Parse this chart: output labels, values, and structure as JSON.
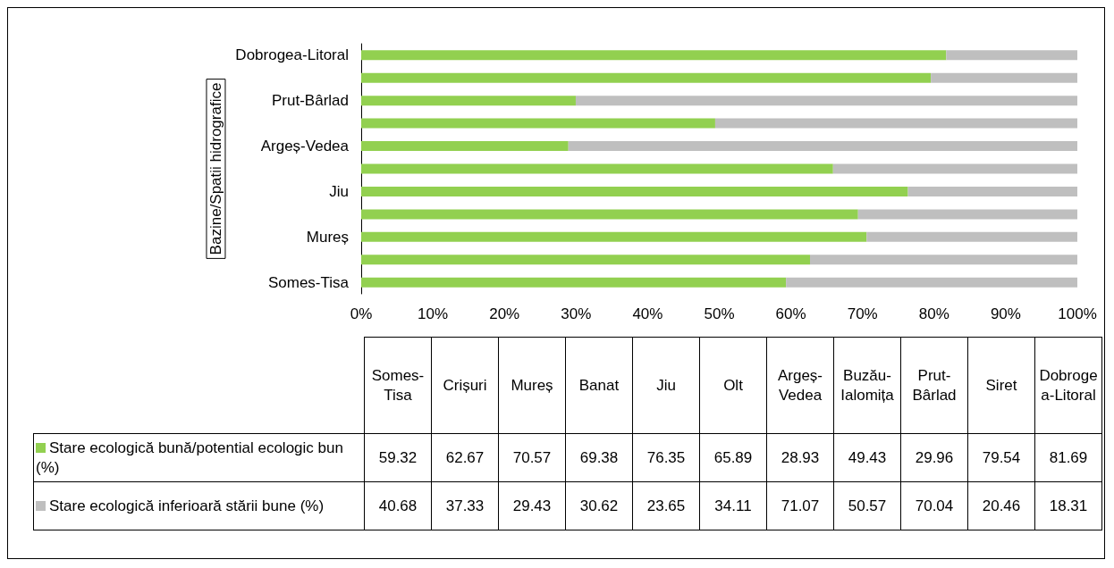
{
  "chart_data": [
    {
      "type": "bar",
      "orientation": "horizontal",
      "stacked": true,
      "ylabel": "Bazine/Spatii hidrografice",
      "categories": [
        "Dobrogea-Litoral",
        null,
        "Prut-Bârlad",
        null,
        "Argeș-Vedea",
        null,
        "Jiu",
        null,
        "Mureș",
        null,
        "Somes-Tisa"
      ],
      "series": [
        {
          "color": "#92d050",
          "values": [
            81.69,
            79.54,
            29.96,
            49.43,
            28.93,
            65.89,
            76.35,
            69.38,
            70.57,
            62.67,
            59.32
          ]
        },
        {
          "color": "#bfbfbf",
          "values": [
            18.31,
            20.46,
            70.04,
            50.57,
            71.07,
            34.11,
            23.65,
            30.62,
            29.43,
            37.33,
            40.68
          ]
        }
      ],
      "xlim": [
        0,
        100
      ],
      "xticks": [
        {
          "value": 0,
          "label": "0%"
        },
        {
          "value": 10,
          "label": "10%"
        },
        {
          "value": 20,
          "label": "20%"
        },
        {
          "value": 30,
          "label": "30%"
        },
        {
          "value": 40,
          "label": "40%"
        },
        {
          "value": 50,
          "label": "50%"
        },
        {
          "value": 60,
          "label": "60%"
        },
        {
          "value": 70,
          "label": "70%"
        },
        {
          "value": 80,
          "label": "80%"
        },
        {
          "value": 90,
          "label": "90%"
        },
        {
          "value": 100,
          "label": "100%"
        }
      ],
      "grid": false
    },
    {
      "type": "other",
      "categories": [
        "Somes-Tisa",
        "Crișuri",
        "Mureș",
        "Banat",
        "Jiu",
        "Olt",
        "Argeș-Vedea",
        "Buzău-Ialomița",
        "Prut-Bârlad",
        "Siret",
        "Dobrogea-Litoral"
      ],
      "series": [
        {
          "name": "Stare ecologică bună/potential ecologic bun (%)",
          "color": "#92d050",
          "values": [
            59.32,
            62.67,
            70.57,
            69.38,
            76.35,
            65.89,
            28.93,
            49.43,
            29.96,
            79.54,
            81.69
          ]
        },
        {
          "name": "Stare ecologică inferioară stării bune (%)",
          "color": "#bfbfbf",
          "values": [
            40.68,
            37.33,
            29.43,
            30.62,
            23.65,
            34.11,
            71.07,
            50.57,
            70.04,
            20.46,
            18.31
          ]
        }
      ],
      "legend": "left",
      "data_labels": true
    }
  ]
}
